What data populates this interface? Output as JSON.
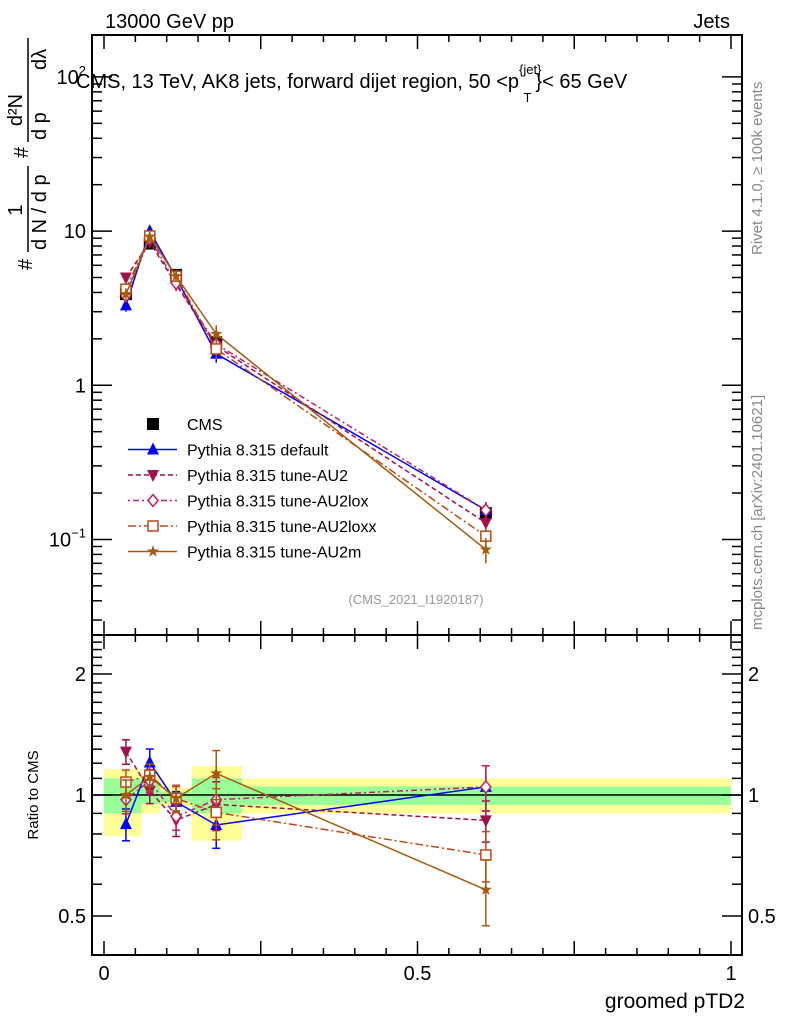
{
  "header": {
    "left": "13000 GeV pp",
    "right": "Jets"
  },
  "side_labels": {
    "rivet": "Rivet 4.1.0, ≥ 100k events",
    "mcplots": "mcplots.cern.ch [arXiv:2401.10621]"
  },
  "chart_data": {
    "type": "line",
    "title": "CMS, 13 TeV, AK8 jets, forward dijet region, 50 < p_T^{jet} < 65 GeV",
    "title_parts": {
      "main": "CMS, 13 TeV, AK8 jets, forward dijet region, 50 <p",
      "sup": "{jet}",
      "sub": "T",
      "tail": "}< 65 GeV"
    },
    "ylabel": "1/(dN/dp_T) # d²N/(dp_T dλ)",
    "ylabel_parts": {
      "hash": "#",
      "num1": "1",
      "den1": "d N / d p",
      "sub": "T",
      "num2": "d²N",
      "den2": "d p",
      "den2b": "dλ"
    },
    "xlabel": "groomed pTD2",
    "ratio_ylabel": "Ratio to CMS",
    "annotation": "(CMS_2021_I1920187)",
    "xlim": [
      0,
      1
    ],
    "ylim": [
      0.024,
      187
    ],
    "yscale": "log",
    "ratio_ylim": [
      0.4,
      2.5
    ],
    "x_ticks": [
      {
        "v": 0,
        "label": "0"
      },
      {
        "v": 0.5,
        "label": "0.5"
      },
      {
        "v": 1,
        "label": "1"
      }
    ],
    "y_ticks": [
      {
        "v": 0.1,
        "base": "10",
        "exp": "−1"
      },
      {
        "v": 1,
        "base": "1",
        "exp": ""
      },
      {
        "v": 10,
        "base": "10",
        "exp": ""
      },
      {
        "v": 100,
        "base": "10",
        "exp": "2"
      }
    ],
    "ratio_ticks": [
      {
        "v": 0.5,
        "label": "0.5"
      },
      {
        "v": 1,
        "label": "1"
      },
      {
        "v": 2,
        "label": "2"
      }
    ],
    "bin_edges": [
      0,
      0.06,
      0.09,
      0.14,
      0.22,
      1
    ],
    "x": [
      0.035,
      0.073,
      0.115,
      0.179,
      0.609
    ],
    "band_outer": [
      [
        0.79,
        1.16
      ],
      [
        0.9,
        1.12
      ],
      [
        0.94,
        1.04
      ],
      [
        0.77,
        1.18
      ],
      [
        0.9,
        1.1
      ]
    ],
    "band_inner": [
      [
        0.9,
        1.1
      ],
      [
        0.95,
        1.08
      ],
      [
        0.96,
        1.02
      ],
      [
        0.9,
        1.1
      ],
      [
        0.945,
        1.05
      ]
    ],
    "legend_position": "lower-left",
    "series": [
      {
        "name": "CMS",
        "color": "#000000",
        "marker": "square",
        "dash": "",
        "values": [
          3.9,
          8.3,
          5.2,
          1.9,
          0.148
        ],
        "err": [
          0.3,
          0.5,
          0.3,
          0.15,
          0.012
        ]
      },
      {
        "name": "Pythia 8.315 default",
        "color": "#0000ff",
        "marker": "triangle-up",
        "dash": "",
        "values": [
          3.3,
          10.0,
          5.0,
          1.6,
          0.155
        ],
        "err": [
          0.3,
          0.8,
          0.3,
          0.2,
          0.02
        ]
      },
      {
        "name": "Pythia 8.315 tune-AU2",
        "color": "#a0104a",
        "marker": "triangle-down",
        "dash": "5,3",
        "values": [
          5.0,
          8.5,
          4.5,
          1.8,
          0.128
        ],
        "err": [
          0.35,
          0.6,
          0.4,
          0.25,
          0.015
        ]
      },
      {
        "name": "Pythia 8.315 tune-AU2lox",
        "color": "#c0206a",
        "marker": "diamond",
        "dash": "2,3,6,3",
        "values": [
          3.8,
          9.0,
          4.6,
          1.85,
          0.155
        ],
        "err": [
          0.3,
          0.6,
          0.35,
          0.25,
          0.02
        ]
      },
      {
        "name": "Pythia 8.315 tune-AU2loxx",
        "color": "#c04818",
        "marker": "square-open",
        "dash": "8,3,2,3",
        "values": [
          4.2,
          9.3,
          5.1,
          1.72,
          0.105
        ],
        "err": [
          0.3,
          0.6,
          0.35,
          0.25,
          0.015
        ]
      },
      {
        "name": "Pythia 8.315 tune-AU2m",
        "color": "#a85a0a",
        "marker": "star",
        "dash": "",
        "values": [
          3.9,
          9.2,
          5.1,
          2.15,
          0.086
        ],
        "err": [
          0.35,
          0.7,
          0.4,
          0.3,
          0.016
        ]
      }
    ]
  }
}
